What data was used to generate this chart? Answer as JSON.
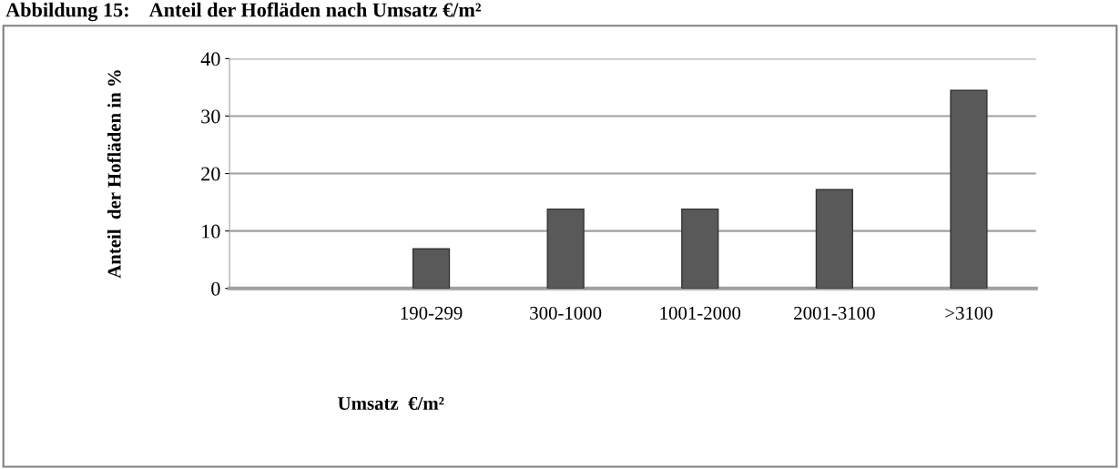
{
  "chart_data": {
    "type": "bar",
    "title": "Abbildung 15:    Anteil der Hofläden nach Umsatz €/m²",
    "categories": [
      null,
      "190-299",
      "300-1000",
      "1001-2000",
      "2001-3100",
      ">3100"
    ],
    "values": [
      null,
      6.9,
      13.8,
      13.8,
      17.2,
      34.5
    ],
    "color": "#595959",
    "xlabel": "Umsatz  €/m²",
    "ylabel": "Anteil  der Hofläden in %",
    "ylim": [
      0,
      40
    ],
    "yticks": [
      0,
      10,
      20,
      30,
      40
    ],
    "grid": "y"
  }
}
